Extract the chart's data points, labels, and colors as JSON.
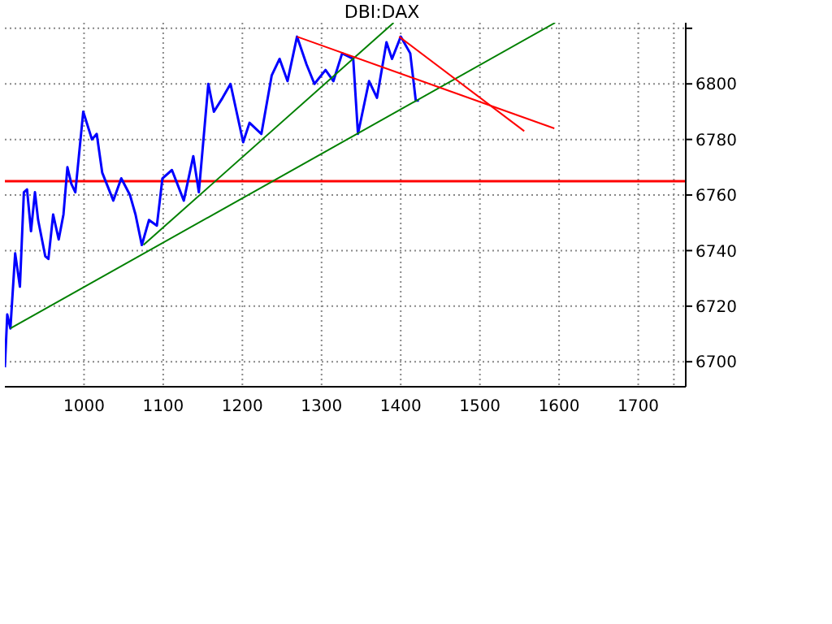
{
  "chart_data": {
    "type": "line",
    "title": "DBI:DAX",
    "xlim": [
      900,
      1760
    ],
    "xticks": [
      1000,
      1100,
      1200,
      1300,
      1400,
      1500,
      1600,
      1700,
      {
        "value": 1745,
        "label": null
      }
    ],
    "ylim": [
      6691,
      6822
    ],
    "yticks": [
      6700,
      6720,
      6740,
      6760,
      6780,
      6800,
      {
        "value": 6820,
        "label": null
      }
    ],
    "grid": true,
    "marker": "none",
    "line_style": "solid",
    "series": [
      {
        "color": "#0000ff",
        "x": [
          900,
          903,
          907,
          913,
          919,
          924,
          928,
          933,
          938,
          942,
          951,
          955,
          961,
          968,
          974,
          979,
          984,
          989,
          999,
          1010,
          1016,
          1023,
          1037,
          1047,
          1058,
          1065,
          1073,
          1082,
          1092,
          1099,
          1111,
          1126,
          1138,
          1145,
          1157,
          1164,
          1175,
          1185,
          1201,
          1209,
          1224,
          1237,
          1247,
          1257,
          1269,
          1281,
          1291,
          1305,
          1315,
          1326,
          1340,
          1346,
          1360,
          1370,
          1382,
          1389,
          1400,
          1412,
          1419,
          1423
        ],
        "values": [
          6698,
          6717,
          6712,
          6739,
          6727,
          6761,
          6762,
          6747,
          6761,
          6751,
          6738,
          6737,
          6753,
          6744,
          6753,
          6770,
          6764,
          6761,
          6790,
          6780,
          6782,
          6768,
          6758,
          6766,
          6760,
          6753,
          6742,
          6751,
          6749,
          6766,
          6769,
          6758,
          6774,
          6761,
          6800,
          6790,
          6795,
          6800,
          6779,
          6786,
          6782,
          6803,
          6809,
          6801,
          6817,
          6807,
          6800,
          6805,
          6801,
          6811,
          6809,
          6782,
          6801,
          6795,
          6815,
          6809,
          6817,
          6811,
          6794,
          6794
        ]
      },
      {
        "color": "#008000",
        "x": [
          907,
          1595
        ],
        "values": [
          6712,
          6822
        ]
      },
      {
        "color": "#008000",
        "x": [
          1075,
          1391
        ],
        "values": [
          6742,
          6822
        ]
      },
      {
        "color": "#ff0000",
        "x": [
          1269,
          1594
        ],
        "values": [
          6817,
          6784
        ]
      },
      {
        "color": "#ff0000",
        "x": [
          1398,
          1556
        ],
        "values": [
          6817,
          6783
        ]
      }
    ],
    "ref_lines": [
      {
        "axis": "y",
        "value": 6765,
        "color": "#ff0000"
      }
    ]
  }
}
